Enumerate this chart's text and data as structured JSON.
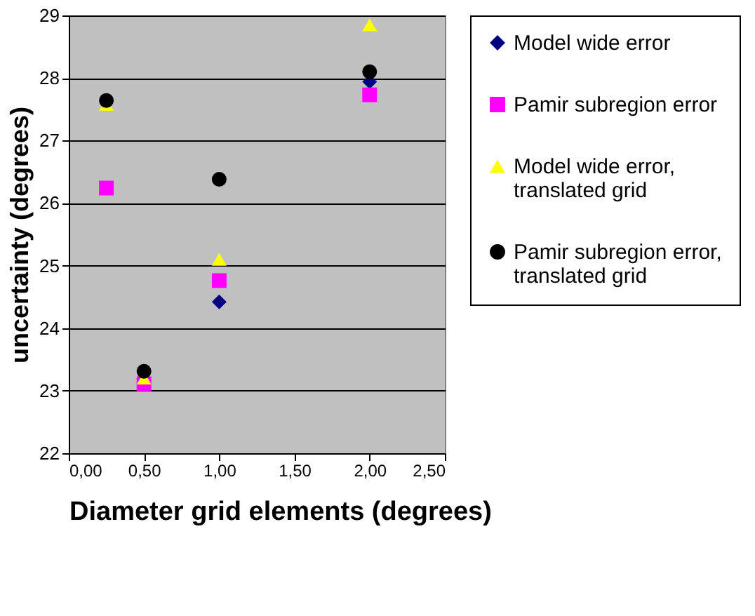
{
  "chart_data": {
    "type": "scatter",
    "xlabel": "Diameter grid elements (degrees)",
    "ylabel": "uncertainty (degrees)",
    "x": [
      0.25,
      0.5,
      1,
      2
    ],
    "series": [
      {
        "name": "Model wide error",
        "color": "#000080",
        "marker": "diamond",
        "values": [
          null,
          null,
          24.42,
          27.94
        ]
      },
      {
        "name": "Pamir subregion error",
        "color": "#ff00ff",
        "marker": "square",
        "values": [
          26.24,
          23.11,
          24.76,
          27.73
        ]
      },
      {
        "name": "Model wide error, translated grid",
        "color": "#ffff00",
        "marker": "triangle",
        "values": [
          27.58,
          23.2,
          25.1,
          28.85
        ]
      },
      {
        "name": "Pamir subregion error, translated grid",
        "color": "#000000",
        "marker": "circle",
        "values": [
          27.64,
          23.31,
          26.38,
          28.1
        ]
      }
    ],
    "xlim": [
      0,
      2.5
    ],
    "xticks": [
      {
        "value": 0,
        "label": "0,00"
      },
      {
        "value": 0.5,
        "label": "0,50"
      },
      {
        "value": 1,
        "label": "1,00"
      },
      {
        "value": 1.5,
        "label": "1,50"
      },
      {
        "value": 2,
        "label": "2,00"
      },
      {
        "value": 2.5,
        "label": "2,50"
      }
    ],
    "ylim": [
      22,
      29
    ],
    "yticks": [
      22,
      23,
      24,
      25,
      26,
      27,
      28,
      29
    ],
    "grid": "y",
    "legend": "right"
  }
}
